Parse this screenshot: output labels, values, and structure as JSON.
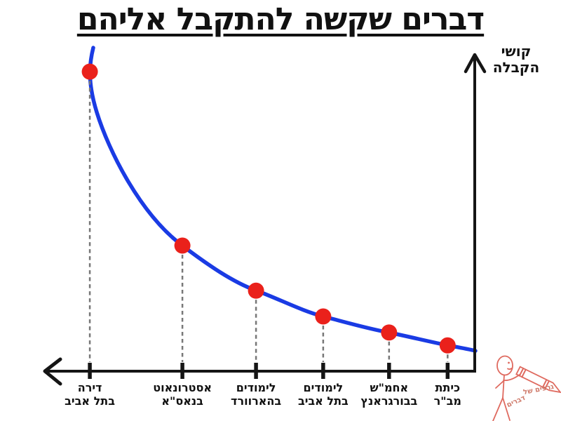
{
  "title": "דברים שקשה להתקבל אליהם",
  "y_axis": {
    "label_line1": "קושי",
    "label_line2": "הקבלה"
  },
  "x_axis": {
    "label": ""
  },
  "logo": {
    "icon": "stick-figure-with-crayon-icon",
    "line1": "גרפים של",
    "line2": "דברים"
  },
  "colors": {
    "curve": "#1a3be4",
    "dot": "#ea211b",
    "axis": "#151515",
    "dash": "#777777",
    "logo": "#df6a5f",
    "logo_text": "#cf7a6a"
  },
  "chart_data": {
    "type": "line",
    "title": "דברים שקשה להתקבל אליהם",
    "xlabel": "",
    "ylabel": "קושי הקבלה",
    "ylim": [
      0,
      1
    ],
    "grid": false,
    "legend": false,
    "curve_shape": "decreasing-hyperbola",
    "categories": [
      "דירה בתל אביב",
      "אסטרונאוט בנאס\"א",
      "לימודים בהארוורד",
      "לימודים בתל אביב",
      "אחמ\"ש בבורגראנץ",
      "כיתת מב\"ר"
    ],
    "points": [
      {
        "label_line1": "דירה",
        "label_line2": "בתל אביב",
        "x_rel": 0.106,
        "difficulty": 0.93
      },
      {
        "label_line1": "אסטרונאוט",
        "label_line2": "בנאס\"א",
        "x_rel": 0.321,
        "difficulty": 0.39
      },
      {
        "label_line1": "לימודים",
        "label_line2": "בהארוורד",
        "x_rel": 0.492,
        "difficulty": 0.25
      },
      {
        "label_line1": "לימודים",
        "label_line2": "בתל אביב",
        "x_rel": 0.648,
        "difficulty": 0.17
      },
      {
        "label_line1": "אחמ\"ש",
        "label_line2": "בבורגראנץ",
        "x_rel": 0.801,
        "difficulty": 0.12
      },
      {
        "label_line1": "כיתת",
        "label_line2": "מב\"ר",
        "x_rel": 0.937,
        "difficulty": 0.08
      }
    ]
  }
}
